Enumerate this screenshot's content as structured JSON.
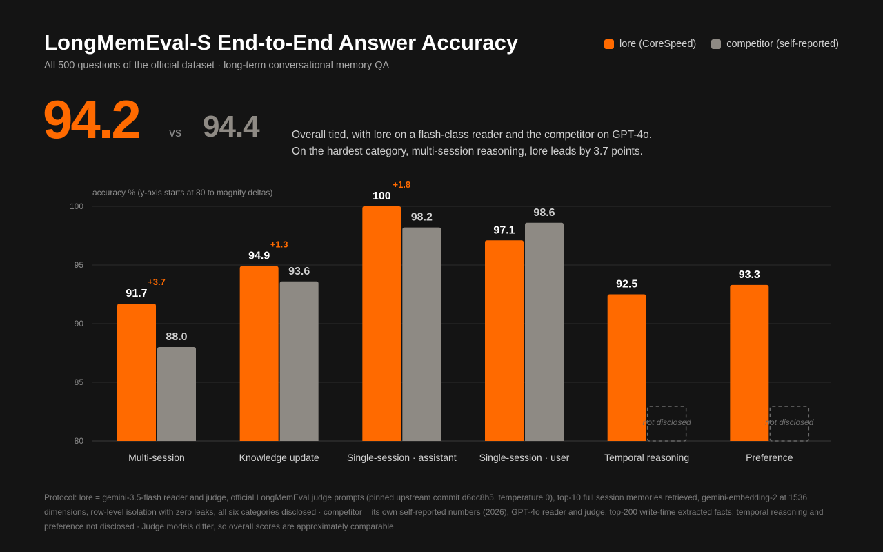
{
  "header": {
    "title": "LongMemEval-S End-to-End Answer Accuracy",
    "subtitle": "All 500 questions of the official dataset · long-term conversational memory QA"
  },
  "legend": [
    {
      "label": "lore (CoreSpeed)",
      "color": "#ff6a00"
    },
    {
      "label": "competitor (self-reported)",
      "color": "#8e8a84"
    }
  ],
  "hero": {
    "lore_score": "94.2",
    "vs_label": "vs",
    "competitor_score": "94.4",
    "summary_line1": "Overall tied, with lore on a flash-class reader and the competitor on GPT-4o.",
    "summary_line2": "On the hardest category, multi-session reasoning, lore leads by 3.7 points."
  },
  "chart_data": {
    "type": "bar",
    "ylabel": "accuracy % (y-axis starts at 80 to magnify deltas)",
    "ylim": [
      80,
      100
    ],
    "yticks": [
      80,
      85,
      90,
      95,
      100
    ],
    "grid": true,
    "categories": [
      "Multi-session",
      "Knowledge update",
      "Single-session · assistant",
      "Single-session · user",
      "Temporal reasoning",
      "Preference"
    ],
    "series": [
      {
        "name": "lore (CoreSpeed)",
        "color": "#ff6a00",
        "values": [
          91.7,
          94.9,
          100,
          97.1,
          92.5,
          93.3
        ],
        "labels": [
          "91.7",
          "94.9",
          "100",
          "97.1",
          "92.5",
          "93.3"
        ]
      },
      {
        "name": "competitor (self-reported)",
        "color": "#8e8a84",
        "values": [
          88.0,
          93.6,
          98.2,
          98.6,
          null,
          null
        ],
        "labels": [
          "88.0",
          "93.6",
          "98.2",
          "98.6",
          null,
          null
        ]
      }
    ],
    "deltas": [
      "+3.7",
      "+1.3",
      "+1.8",
      null,
      null,
      null
    ],
    "delta_color": "#ff6a00",
    "missing_label": "not disclosed"
  },
  "footer": {
    "protocol": "Protocol: lore = gemini-3.5-flash reader and judge, official LongMemEval judge prompts (pinned upstream commit d6dc8b5, temperature 0), top-10 full session memories retrieved, gemini-embedding-2 at 1536 dimensions, row-level isolation with zero leaks, all six categories disclosed · competitor = its own self-reported numbers (2026), GPT-4o reader and judge, top-200 write-time extracted facts; temporal reasoning and preference not disclosed · Judge models differ, so overall scores are approximately comparable"
  }
}
